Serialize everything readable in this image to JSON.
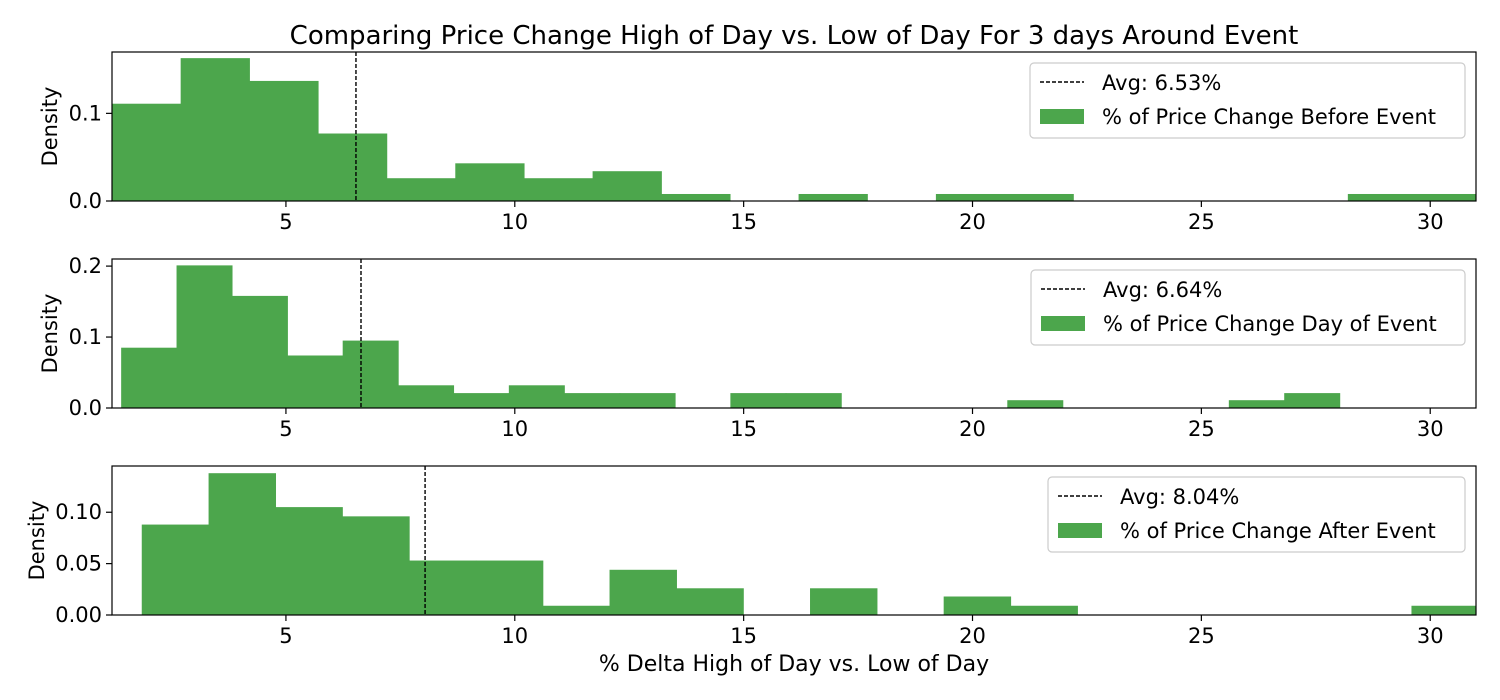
{
  "chart_data": {
    "type": "bar",
    "title": "Comparing Price Change High of Day vs. Low of Day For 3 days Around Event",
    "xlabel": "% Delta High of Day vs. Low of Day",
    "bar_color": "#4ca64c",
    "avg_line_color": "#000000",
    "panels": [
      {
        "ylabel": "Density",
        "xlim": [
          1.2,
          31.0
        ],
        "ylim": [
          0,
          0.17
        ],
        "xticks": [
          5,
          10,
          15,
          20,
          25,
          30
        ],
        "yticks": [
          0.0,
          0.1
        ],
        "ytick_labels": [
          "0.0",
          "0.1"
        ],
        "avg": 6.53,
        "legend_avg_label": "Avg: 6.53%",
        "series_name": "% of Price Change Before Event",
        "bin_start": 1.2,
        "bin_width": 1.5,
        "values": [
          0.111,
          0.163,
          0.137,
          0.077,
          0.026,
          0.043,
          0.026,
          0.034,
          0.008,
          0,
          0.008,
          0,
          0.008,
          0.008,
          0,
          0,
          0,
          0,
          0.008,
          0.008
        ]
      },
      {
        "ylabel": "Density",
        "xlim": [
          1.2,
          31.0
        ],
        "ylim": [
          0,
          0.21
        ],
        "xticks": [
          5,
          10,
          15,
          20,
          25,
          30
        ],
        "yticks": [
          0.0,
          0.1,
          0.2
        ],
        "ytick_labels": [
          "0.0",
          "0.1",
          "0.2"
        ],
        "avg": 6.64,
        "legend_avg_label": "Avg: 6.64%",
        "series_name": "% of Price Change Day of Event",
        "bin_start": 1.4,
        "bin_width": 1.21,
        "values": [
          0.085,
          0.201,
          0.158,
          0.074,
          0.095,
          0.032,
          0.021,
          0.032,
          0.021,
          0.021,
          0,
          0.021,
          0.021,
          0,
          0,
          0,
          0.011,
          0,
          0,
          0,
          0.011,
          0.021
        ]
      },
      {
        "ylabel": "Density",
        "xlim": [
          1.2,
          31.0
        ],
        "ylim": [
          0,
          0.145
        ],
        "xticks": [
          5,
          10,
          15,
          20,
          25,
          30
        ],
        "yticks": [
          0.0,
          0.05,
          0.1
        ],
        "ytick_labels": [
          "0.00",
          "0.05",
          "0.10"
        ],
        "avg": 8.04,
        "legend_avg_label": "Avg: 8.04%",
        "series_name": "% of Price Change After Event",
        "bin_start": 1.85,
        "bin_width": 1.46,
        "values": [
          0.088,
          0.138,
          0.105,
          0.096,
          0.053,
          0.053,
          0.009,
          0.044,
          0.026,
          0,
          0.026,
          0,
          0.018,
          0.009,
          0,
          0,
          0,
          0,
          0,
          0.009,
          0.009
        ]
      }
    ]
  }
}
